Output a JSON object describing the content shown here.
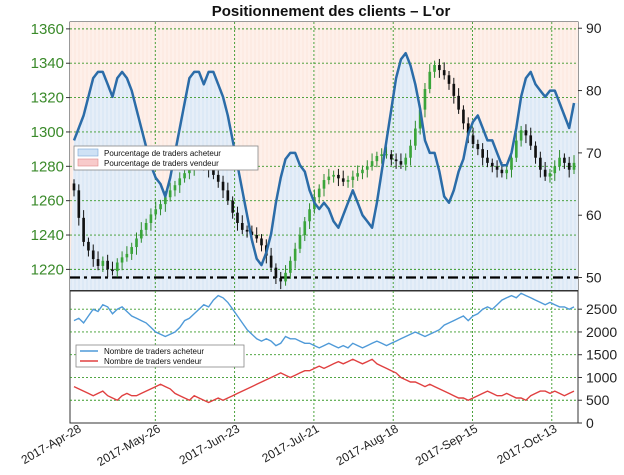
{
  "chart_data": [
    {
      "type": "line",
      "title": "Positionnement des clients – L'or",
      "left_axis": {
        "ticks": [
          1220,
          1240,
          1260,
          1280,
          1300,
          1320,
          1340,
          1360
        ],
        "ylim": [
          1208,
          1364
        ]
      },
      "right_axis": {
        "ticks": [
          50,
          60,
          70,
          80,
          90
        ],
        "ylim": [
          48,
          91
        ]
      },
      "reference_level_right": 50,
      "legend": [
        "Pourcentage de traders acheteur",
        "Pourcentage de traders vendeur"
      ],
      "series": [
        {
          "name": "Pourcentage de traders acheteur",
          "axis": "right",
          "color": "#2b6ca8",
          "values": [
            72,
            74,
            76,
            79,
            82,
            83,
            83,
            81,
            79,
            82,
            83,
            82,
            80,
            77,
            74,
            71,
            68,
            66,
            65,
            63,
            66,
            70,
            74,
            78,
            82,
            83,
            83,
            81,
            83,
            83,
            81,
            79,
            76,
            72,
            68,
            64,
            60,
            56,
            53,
            52,
            54,
            57,
            62,
            66,
            69,
            70,
            70,
            68,
            67,
            64,
            62,
            61,
            62,
            61,
            59,
            58,
            60,
            62,
            64,
            62,
            60,
            59,
            58,
            62,
            67,
            72,
            77,
            82,
            85,
            86,
            84,
            81,
            77,
            72,
            70,
            70,
            67,
            63,
            62,
            64,
            67,
            69,
            73,
            75,
            76,
            74,
            72,
            72,
            70,
            68,
            68,
            70,
            74,
            79,
            82,
            83,
            81,
            80,
            79,
            80,
            80,
            78,
            76,
            74,
            78
          ]
        }
      ],
      "candles": {
        "name": "L'or",
        "axis": "left",
        "close": [
          1266,
          1250,
          1236,
          1231,
          1226,
          1222,
          1225,
          1220,
          1219,
          1224,
          1227,
          1229,
          1233,
          1238,
          1243,
          1247,
          1252,
          1255,
          1258,
          1262,
          1266,
          1269,
          1273,
          1276,
          1279,
          1282,
          1283,
          1281,
          1278,
          1275,
          1271,
          1266,
          1260,
          1253,
          1247,
          1243,
          1242,
          1240,
          1238,
          1234,
          1228,
          1221,
          1215,
          1213,
          1218,
          1225,
          1232,
          1240,
          1248,
          1255,
          1262,
          1267,
          1272,
          1274,
          1275,
          1273,
          1271,
          1272,
          1274,
          1276,
          1278,
          1280,
          1283,
          1286,
          1287,
          1287,
          1284,
          1283,
          1281,
          1285,
          1292,
          1302,
          1313,
          1325,
          1335,
          1339,
          1336,
          1333,
          1328,
          1321,
          1313,
          1305,
          1298,
          1293,
          1290,
          1285,
          1282,
          1280,
          1278,
          1276,
          1278,
          1285,
          1295,
          1301,
          1298,
          1292,
          1285,
          1278,
          1274,
          1276,
          1280,
          1285,
          1282,
          1278,
          1282
        ]
      }
    },
    {
      "type": "line",
      "legend": [
        "Nombre de traders acheteur",
        "Nombre de traders vendeur"
      ],
      "right_axis": {
        "ticks": [
          0,
          500,
          1000,
          1500,
          2000,
          2500
        ],
        "ylim": [
          0,
          2900
        ]
      },
      "x_tick_labels": [
        "2017-Apr-28",
        "2017-May-26",
        "2017-Jun-23",
        "2017-Jul-21",
        "2017-Aug-18",
        "2017-Sep-15",
        "2017-Oct-13"
      ],
      "series": [
        {
          "name": "Nombre de traders acheteur",
          "color": "#4f9ad8",
          "values": [
            2250,
            2300,
            2200,
            2350,
            2500,
            2450,
            2600,
            2550,
            2400,
            2500,
            2550,
            2450,
            2350,
            2300,
            2250,
            2200,
            2100,
            2000,
            1950,
            1900,
            1950,
            2000,
            2100,
            2250,
            2300,
            2400,
            2500,
            2600,
            2550,
            2700,
            2800,
            2750,
            2650,
            2500,
            2350,
            2200,
            2050,
            1950,
            1850,
            1800,
            1850,
            1800,
            1700,
            1750,
            1900,
            1850,
            1850,
            1800,
            1750,
            1750,
            1700,
            1650,
            1700,
            1750,
            1700,
            1650,
            1700,
            1650,
            1750,
            1700,
            1650,
            1700,
            1750,
            1800,
            1750,
            1700,
            1750,
            1800,
            1850,
            1900,
            1950,
            2000,
            1950,
            1900,
            1950,
            2000,
            2050,
            2150,
            2200,
            2250,
            2300,
            2350,
            2250,
            2350,
            2400,
            2500,
            2550,
            2500,
            2600,
            2700,
            2750,
            2800,
            2750,
            2850,
            2800,
            2750,
            2700,
            2650,
            2600,
            2650,
            2600,
            2550,
            2550,
            2500,
            2550
          ]
        },
        {
          "name": "Nombre de traders vendeur",
          "color": "#e04040",
          "values": [
            800,
            750,
            700,
            650,
            600,
            650,
            700,
            600,
            550,
            500,
            600,
            650,
            600,
            600,
            650,
            700,
            750,
            800,
            850,
            800,
            750,
            650,
            600,
            550,
            500,
            600,
            550,
            500,
            450,
            500,
            550,
            500,
            550,
            600,
            650,
            700,
            750,
            800,
            850,
            900,
            950,
            1000,
            1050,
            1100,
            1050,
            1000,
            1050,
            1100,
            1150,
            1150,
            1200,
            1250,
            1200,
            1250,
            1300,
            1350,
            1300,
            1350,
            1400,
            1350,
            1300,
            1350,
            1400,
            1300,
            1250,
            1200,
            1150,
            1100,
            1000,
            950,
            900,
            900,
            850,
            800,
            850,
            800,
            750,
            700,
            650,
            600,
            550,
            550,
            500,
            550,
            600,
            650,
            700,
            650,
            600,
            600,
            650,
            600,
            550,
            550,
            500,
            600,
            650,
            700,
            700,
            650,
            700,
            650,
            600,
            650,
            700
          ]
        }
      ]
    }
  ]
}
